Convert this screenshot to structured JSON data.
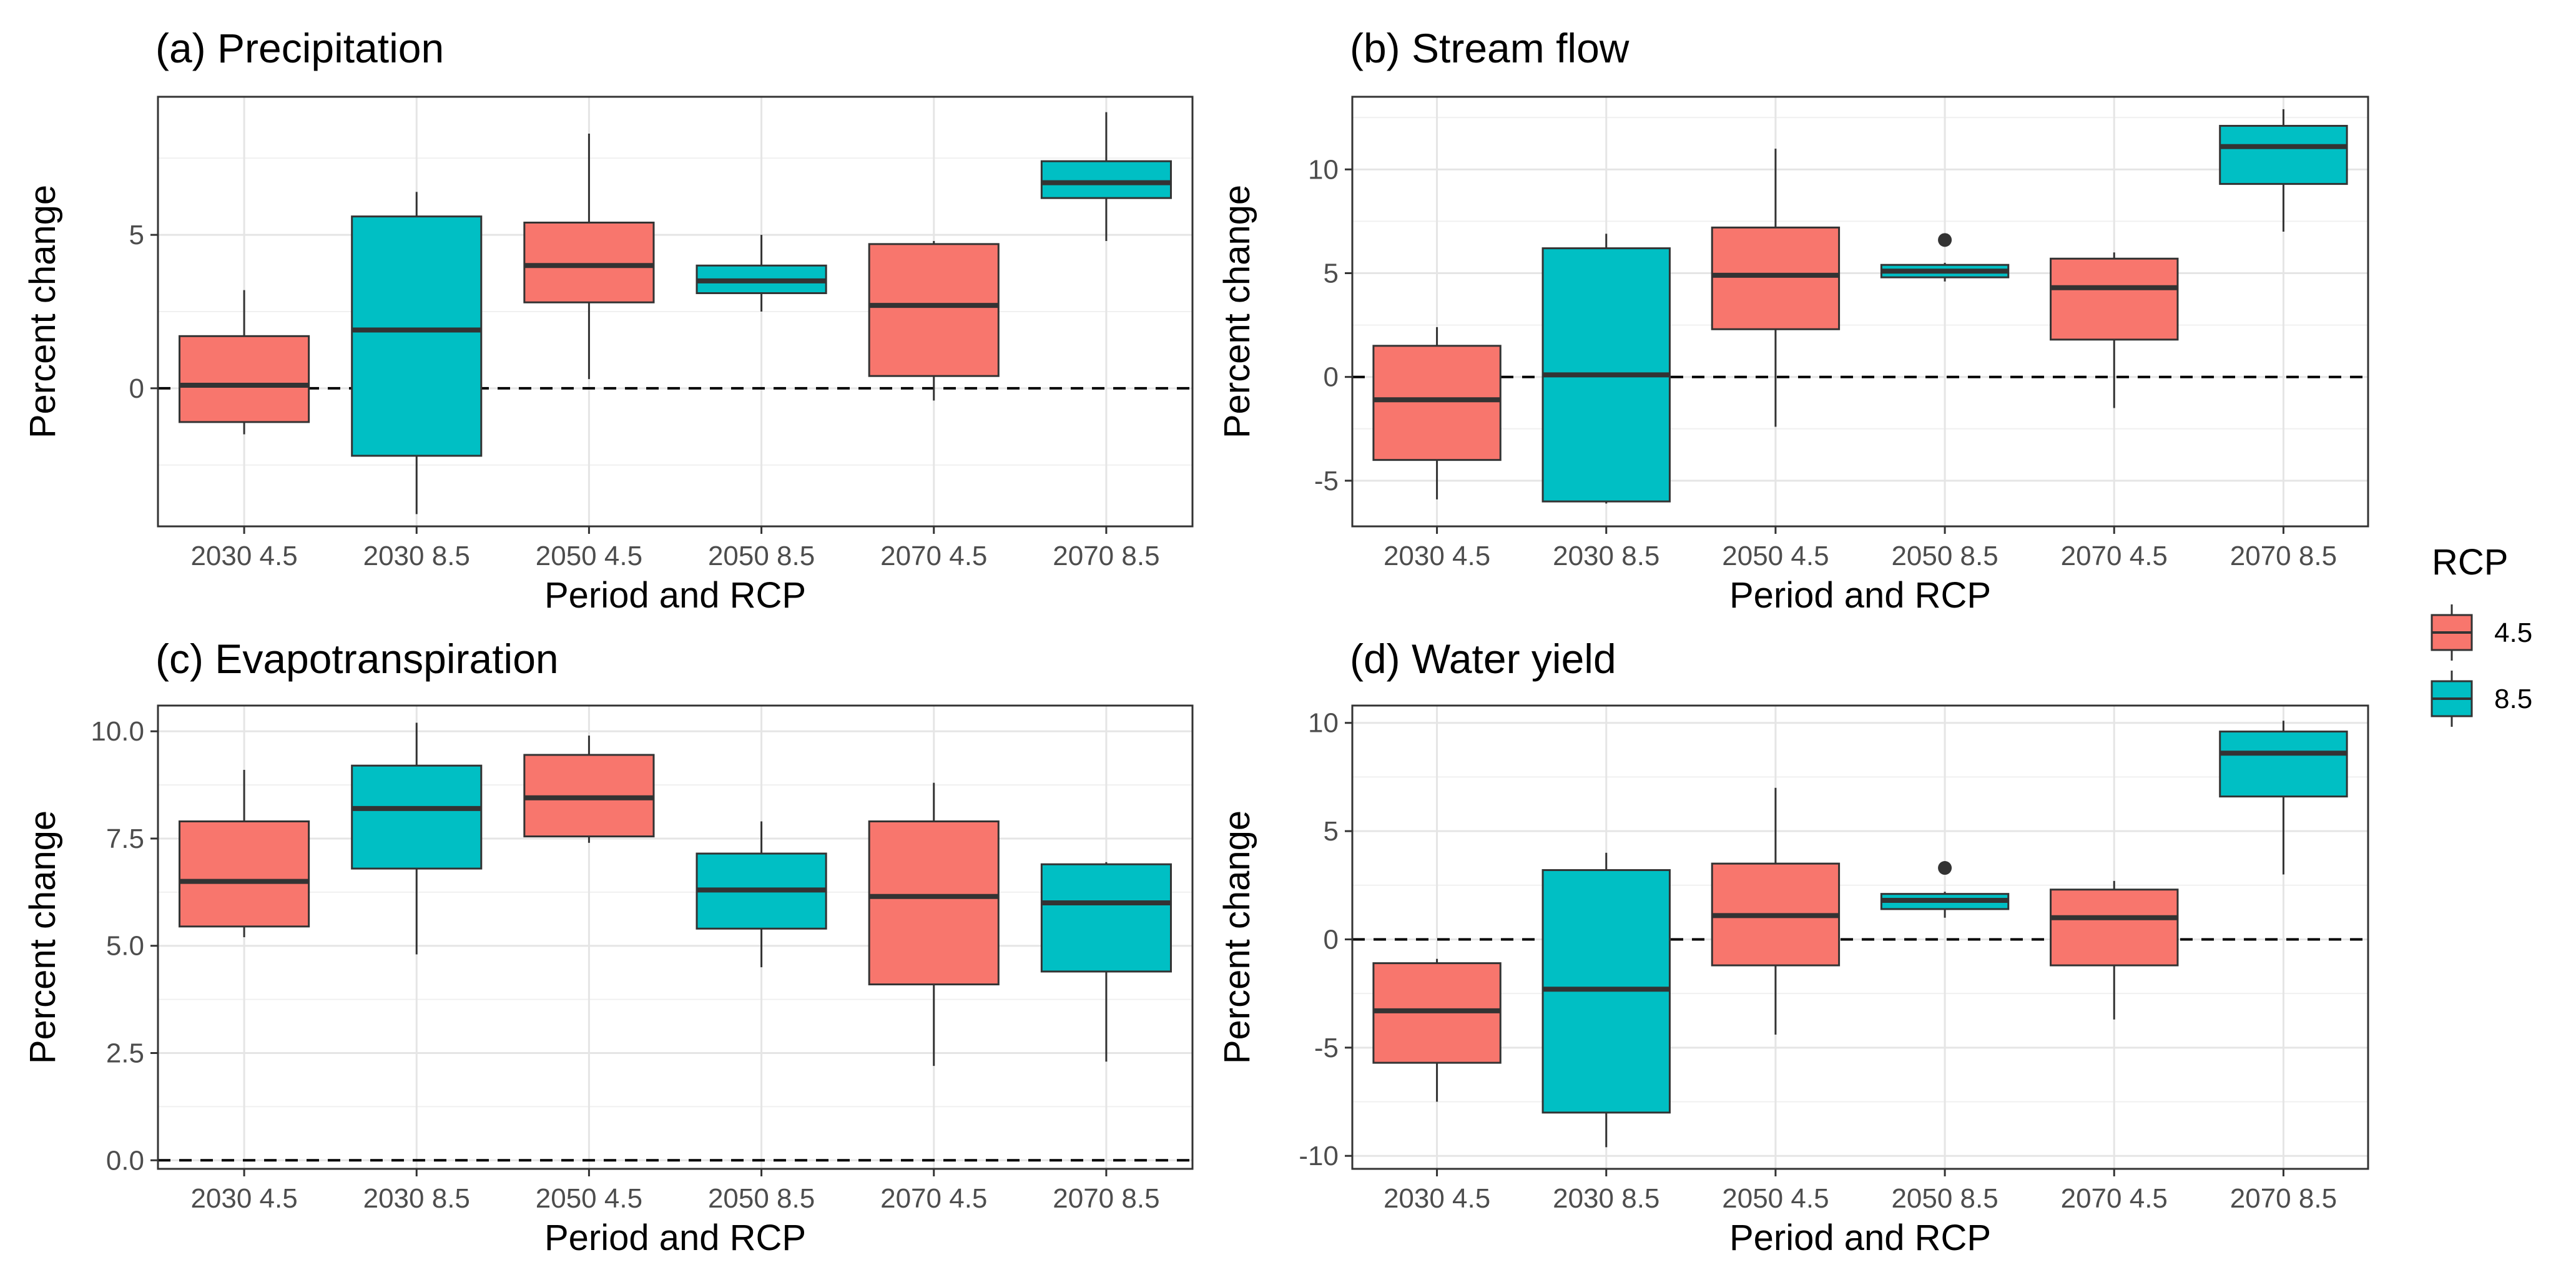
{
  "chart_data": [
    {
      "type": "box",
      "title": "(a) Precipitation",
      "xlabel": "Period and RCP",
      "ylabel": "Percent change",
      "ylim": [
        -4.5,
        9.5
      ],
      "yticks": [
        0,
        5
      ],
      "ytick_labels": [
        "0",
        "5"
      ],
      "reference_line": 0,
      "categories": [
        "2030 4.5",
        "2030 8.5",
        "2050 4.5",
        "2050 8.5",
        "2070 4.5",
        "2070 8.5"
      ],
      "rcp": [
        "4.5",
        "8.5",
        "4.5",
        "8.5",
        "4.5",
        "8.5"
      ],
      "boxes": [
        {
          "min": -1.5,
          "q1": -1.1,
          "median": 0.1,
          "q3": 1.7,
          "max": 3.2,
          "outliers": []
        },
        {
          "min": -4.1,
          "q1": -2.2,
          "median": 1.9,
          "q3": 5.6,
          "max": 6.4,
          "outliers": []
        },
        {
          "min": 0.3,
          "q1": 2.8,
          "median": 4.0,
          "q3": 5.4,
          "max": 8.3,
          "outliers": []
        },
        {
          "min": 2.5,
          "q1": 3.1,
          "median": 3.5,
          "q3": 4.0,
          "max": 5.0,
          "outliers": []
        },
        {
          "min": -0.4,
          "q1": 0.4,
          "median": 2.7,
          "q3": 4.7,
          "max": 4.8,
          "outliers": []
        },
        {
          "min": 4.8,
          "q1": 6.2,
          "median": 6.7,
          "q3": 7.4,
          "max": 9.0,
          "outliers": []
        }
      ]
    },
    {
      "type": "box",
      "title": "(b) Stream flow",
      "xlabel": "Period and RCP",
      "ylabel": "Percent change",
      "ylim": [
        -7.2,
        13.5
      ],
      "yticks": [
        -5,
        0,
        5,
        10
      ],
      "ytick_labels": [
        "-5",
        "0",
        "5",
        "10"
      ],
      "reference_line": 0,
      "categories": [
        "2030 4.5",
        "2030 8.5",
        "2050 4.5",
        "2050 8.5",
        "2070 4.5",
        "2070 8.5"
      ],
      "rcp": [
        "4.5",
        "8.5",
        "4.5",
        "8.5",
        "4.5",
        "8.5"
      ],
      "boxes": [
        {
          "min": -5.9,
          "q1": -4.0,
          "median": -1.1,
          "q3": 1.5,
          "max": 2.4,
          "outliers": []
        },
        {
          "min": -6.1,
          "q1": -6.0,
          "median": 0.1,
          "q3": 6.2,
          "max": 6.9,
          "outliers": []
        },
        {
          "min": -2.4,
          "q1": 2.3,
          "median": 4.9,
          "q3": 7.2,
          "max": 11.0,
          "outliers": []
        },
        {
          "min": 4.6,
          "q1": 4.8,
          "median": 5.1,
          "q3": 5.4,
          "max": 5.5,
          "outliers": [
            6.6
          ]
        },
        {
          "min": -1.5,
          "q1": 1.8,
          "median": 4.3,
          "q3": 5.7,
          "max": 6.0,
          "outliers": []
        },
        {
          "min": 7.0,
          "q1": 9.3,
          "median": 11.1,
          "q3": 12.1,
          "max": 12.9,
          "outliers": []
        }
      ]
    },
    {
      "type": "box",
      "title": "(c) Evapotranspiration",
      "xlabel": "Period and RCP",
      "ylabel": "Percent change",
      "ylim": [
        -0.2,
        10.6
      ],
      "yticks": [
        0,
        2.5,
        5,
        7.5,
        10
      ],
      "ytick_labels": [
        "0.0",
        "2.5",
        "5.0",
        "7.5",
        "10.0"
      ],
      "reference_line": 0,
      "categories": [
        "2030 4.5",
        "2030 8.5",
        "2050 4.5",
        "2050 8.5",
        "2070 4.5",
        "2070 8.5"
      ],
      "rcp": [
        "4.5",
        "8.5",
        "4.5",
        "8.5",
        "4.5",
        "8.5"
      ],
      "boxes": [
        {
          "min": 5.2,
          "q1": 5.45,
          "median": 6.5,
          "q3": 7.9,
          "max": 9.1,
          "outliers": []
        },
        {
          "min": 4.8,
          "q1": 6.8,
          "median": 8.2,
          "q3": 9.2,
          "max": 10.2,
          "outliers": []
        },
        {
          "min": 7.4,
          "q1": 7.55,
          "median": 8.45,
          "q3": 9.45,
          "max": 9.9,
          "outliers": []
        },
        {
          "min": 4.5,
          "q1": 5.4,
          "median": 6.3,
          "q3": 7.15,
          "max": 7.9,
          "outliers": []
        },
        {
          "min": 2.2,
          "q1": 4.1,
          "median": 6.15,
          "q3": 7.9,
          "max": 8.8,
          "outliers": []
        },
        {
          "min": 2.3,
          "q1": 4.4,
          "median": 6.0,
          "q3": 6.9,
          "max": 6.95,
          "outliers": []
        }
      ]
    },
    {
      "type": "box",
      "title": "(d) Water yield",
      "xlabel": "Period and RCP",
      "ylabel": "Percent change",
      "ylim": [
        -10.6,
        10.8
      ],
      "yticks": [
        -10,
        -5,
        0,
        5,
        10
      ],
      "ytick_labels": [
        "-10",
        "-5",
        "0",
        "5",
        "10"
      ],
      "reference_line": 0,
      "categories": [
        "2030 4.5",
        "2030 8.5",
        "2050 4.5",
        "2050 8.5",
        "2070 4.5",
        "2070 8.5"
      ],
      "rcp": [
        "4.5",
        "8.5",
        "4.5",
        "8.5",
        "4.5",
        "8.5"
      ],
      "boxes": [
        {
          "min": -7.5,
          "q1": -5.7,
          "median": -3.3,
          "q3": -1.1,
          "max": -0.9,
          "outliers": []
        },
        {
          "min": -9.6,
          "q1": -8.0,
          "median": -2.3,
          "q3": 3.2,
          "max": 4.0,
          "outliers": []
        },
        {
          "min": -4.4,
          "q1": -1.2,
          "median": 1.1,
          "q3": 3.5,
          "max": 7.0,
          "outliers": []
        },
        {
          "min": 1.0,
          "q1": 1.4,
          "median": 1.8,
          "q3": 2.1,
          "max": 2.2,
          "outliers": [
            3.3
          ]
        },
        {
          "min": -3.7,
          "q1": -1.2,
          "median": 1.0,
          "q3": 2.3,
          "max": 2.7,
          "outliers": []
        },
        {
          "min": 3.0,
          "q1": 6.6,
          "median": 8.6,
          "q3": 9.6,
          "max": 10.1,
          "outliers": []
        }
      ]
    }
  ],
  "legend": {
    "title": "RCP",
    "items": [
      {
        "label": "4.5",
        "color": "#F8766D"
      },
      {
        "label": "8.5",
        "color": "#00BFC4"
      }
    ]
  },
  "colors": {
    "4.5": "#F8766D",
    "8.5": "#00BFC4"
  }
}
